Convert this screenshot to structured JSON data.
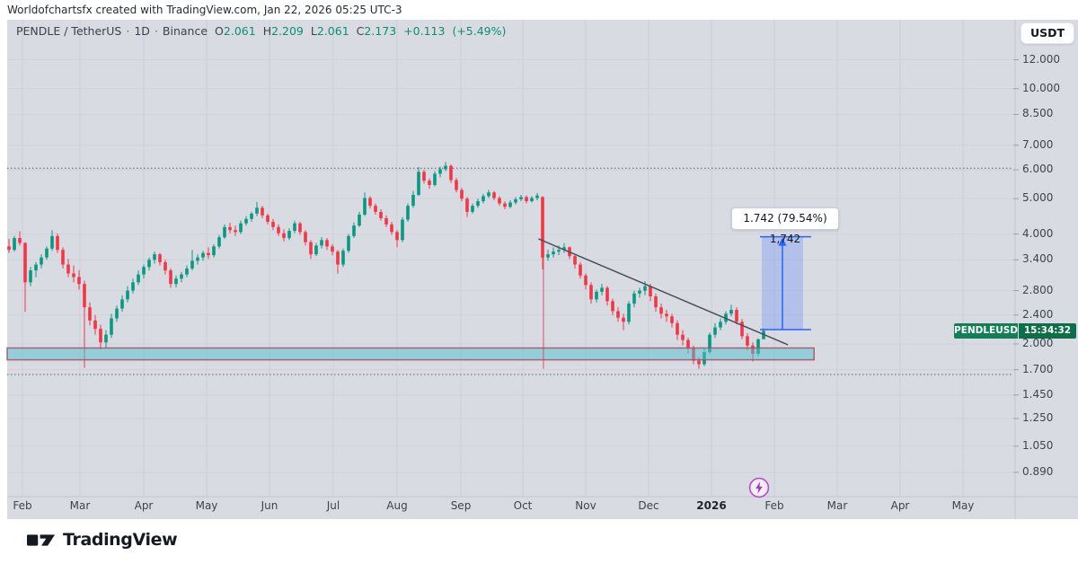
{
  "watermark": "Worldofchartsfx created with TradingView.com, Jan 22, 2026 05:25 UTC-3",
  "header": {
    "symbol_title": "PENDLE / TetherUS",
    "separator": "·",
    "interval": "1D",
    "exchange": "Binance",
    "ohlc": {
      "o_label": "O",
      "o": "2.061",
      "h_label": "H",
      "h": "2.209",
      "l_label": "L",
      "l": "2.061",
      "c_label": "C",
      "c": "2.173",
      "change": "+0.113",
      "change_pct": "(+5.49%)"
    }
  },
  "currency_button": {
    "label": "USDT"
  },
  "symbol_badge": {
    "name": "PENDLEUSDT",
    "countdown": "15:34:32"
  },
  "footer": {
    "brand": "TradingView"
  },
  "colors": {
    "up": "#089981",
    "down": "#f23645",
    "chart_bg": "#d9dbe3",
    "grid": "#c9ccd6",
    "axis_text": "#3f434d",
    "zone_fill": "#4fc3cf",
    "zone_border": "#a84b5e",
    "measure_blue": "#2962ff",
    "trendline": "#4a4e58",
    "vline_red": "#e53945",
    "badge_bg": "#118055",
    "bolt_purple": "#b44fc5",
    "header_value": "#0a8f72",
    "dotted_level": "#5d616c"
  },
  "chart_data": {
    "type": "candlestick",
    "title": "PENDLE / TetherUS · 1D · Binance",
    "scale": "log",
    "ylim": [
      0.76,
      15.4
    ],
    "grid": true,
    "y_axis_ticks": [
      12.0,
      10.0,
      8.5,
      7.0,
      6.0,
      5.0,
      4.0,
      3.4,
      2.8,
      2.4,
      2.0,
      1.7,
      1.45,
      1.25,
      1.05,
      0.89
    ],
    "x_axis_labels": [
      "Feb",
      "Mar",
      "Apr",
      "May",
      "Jun",
      "Jul",
      "Aug",
      "Sep",
      "Oct",
      "Nov",
      "Dec",
      "2026",
      "Feb",
      "Mar",
      "Apr",
      "May"
    ],
    "last_bar": {
      "open": 2.061,
      "high": 2.209,
      "low": 2.061,
      "close": 2.173,
      "change": 0.113,
      "change_pct": 5.49
    },
    "candles_ohlc": [
      [
        3.7,
        3.88,
        3.55,
        3.62
      ],
      [
        3.62,
        3.95,
        3.58,
        3.9
      ],
      [
        3.9,
        4.07,
        3.72,
        3.78
      ],
      [
        3.78,
        3.8,
        2.45,
        2.95
      ],
      [
        2.95,
        3.25,
        2.88,
        3.18
      ],
      [
        3.18,
        3.35,
        3.05,
        3.3
      ],
      [
        3.3,
        3.52,
        3.22,
        3.45
      ],
      [
        3.45,
        3.7,
        3.4,
        3.65
      ],
      [
        3.65,
        4.1,
        3.6,
        3.95
      ],
      [
        3.95,
        4.02,
        3.55,
        3.62
      ],
      [
        3.62,
        3.68,
        3.22,
        3.3
      ],
      [
        3.3,
        3.42,
        3.05,
        3.12
      ],
      [
        3.12,
        3.28,
        2.95,
        3.05
      ],
      [
        3.05,
        3.18,
        2.82,
        2.92
      ],
      [
        2.92,
        2.98,
        1.72,
        2.52
      ],
      [
        2.52,
        2.6,
        2.25,
        2.32
      ],
      [
        2.32,
        2.4,
        2.12,
        2.2
      ],
      [
        2.2,
        2.26,
        1.93,
        2.02
      ],
      [
        2.02,
        2.18,
        1.95,
        2.12
      ],
      [
        2.12,
        2.42,
        2.08,
        2.35
      ],
      [
        2.35,
        2.55,
        2.3,
        2.5
      ],
      [
        2.5,
        2.72,
        2.45,
        2.65
      ],
      [
        2.65,
        2.88,
        2.6,
        2.8
      ],
      [
        2.8,
        3.02,
        2.75,
        2.95
      ],
      [
        2.95,
        3.18,
        2.9,
        3.1
      ],
      [
        3.1,
        3.3,
        3.02,
        3.25
      ],
      [
        3.25,
        3.45,
        3.18,
        3.4
      ],
      [
        3.4,
        3.58,
        3.32,
        3.52
      ],
      [
        3.52,
        3.55,
        3.28,
        3.35
      ],
      [
        3.35,
        3.4,
        3.1,
        3.18
      ],
      [
        3.18,
        3.22,
        2.85,
        2.92
      ],
      [
        2.92,
        3.08,
        2.86,
        3.02
      ],
      [
        3.02,
        3.15,
        2.95,
        3.1
      ],
      [
        3.1,
        3.28,
        3.05,
        3.22
      ],
      [
        3.22,
        3.62,
        3.18,
        3.38
      ],
      [
        3.38,
        3.52,
        3.3,
        3.45
      ],
      [
        3.45,
        3.6,
        3.38,
        3.55
      ],
      [
        3.55,
        3.68,
        3.42,
        3.5
      ],
      [
        3.5,
        3.75,
        3.45,
        3.7
      ],
      [
        3.7,
        3.98,
        3.65,
        3.92
      ],
      [
        3.92,
        4.25,
        3.88,
        4.18
      ],
      [
        4.18,
        4.3,
        4.02,
        4.1
      ],
      [
        4.1,
        4.22,
        3.95,
        4.05
      ],
      [
        4.05,
        4.35,
        4.0,
        4.28
      ],
      [
        4.28,
        4.48,
        4.22,
        4.4
      ],
      [
        4.4,
        4.6,
        4.32,
        4.55
      ],
      [
        4.55,
        4.9,
        4.48,
        4.72
      ],
      [
        4.72,
        4.78,
        4.42,
        4.5
      ],
      [
        4.5,
        4.55,
        4.25,
        4.32
      ],
      [
        4.32,
        4.4,
        4.1,
        4.18
      ],
      [
        4.18,
        4.25,
        3.95,
        4.02
      ],
      [
        4.02,
        4.12,
        3.82,
        3.9
      ],
      [
        3.9,
        4.15,
        3.85,
        4.08
      ],
      [
        4.08,
        4.35,
        4.02,
        4.28
      ],
      [
        4.28,
        4.32,
        3.98,
        4.05
      ],
      [
        4.05,
        4.1,
        3.72,
        3.8
      ],
      [
        3.8,
        3.85,
        3.42,
        3.52
      ],
      [
        3.52,
        3.78,
        3.48,
        3.72
      ],
      [
        3.72,
        3.92,
        3.65,
        3.85
      ],
      [
        3.85,
        3.9,
        3.62,
        3.7
      ],
      [
        3.7,
        3.75,
        3.5,
        3.58
      ],
      [
        3.58,
        3.62,
        3.12,
        3.3
      ],
      [
        3.3,
        3.65,
        3.25,
        3.6
      ],
      [
        3.6,
        4.0,
        3.55,
        3.95
      ],
      [
        3.95,
        4.3,
        3.9,
        4.22
      ],
      [
        4.22,
        4.6,
        4.18,
        4.52
      ],
      [
        4.52,
        5.2,
        4.48,
        5.02
      ],
      [
        5.02,
        5.08,
        4.7,
        4.78
      ],
      [
        4.78,
        4.85,
        4.52,
        4.6
      ],
      [
        4.6,
        4.68,
        4.35,
        4.42
      ],
      [
        4.42,
        4.5,
        4.18,
        4.25
      ],
      [
        4.25,
        4.32,
        3.98,
        4.05
      ],
      [
        4.05,
        4.1,
        3.68,
        3.85
      ],
      [
        3.85,
        4.45,
        3.8,
        4.38
      ],
      [
        4.38,
        4.85,
        4.32,
        4.78
      ],
      [
        4.78,
        5.25,
        4.72,
        5.12
      ],
      [
        5.12,
        6.1,
        5.08,
        5.92
      ],
      [
        5.92,
        6.0,
        5.5,
        5.6
      ],
      [
        5.6,
        5.68,
        5.32,
        5.45
      ],
      [
        5.45,
        5.95,
        5.4,
        5.85
      ],
      [
        5.85,
        6.12,
        5.72,
        6.02
      ],
      [
        6.02,
        6.3,
        5.95,
        6.15
      ],
      [
        6.15,
        6.2,
        5.52,
        5.62
      ],
      [
        5.62,
        5.7,
        5.2,
        5.28
      ],
      [
        5.28,
        5.35,
        4.92,
        5.0
      ],
      [
        5.0,
        5.05,
        4.45,
        4.6
      ],
      [
        4.6,
        4.85,
        4.55,
        4.78
      ],
      [
        4.78,
        5.0,
        4.72,
        4.92
      ],
      [
        4.92,
        5.15,
        4.85,
        5.08
      ],
      [
        5.08,
        5.28,
        5.02,
        5.2
      ],
      [
        5.2,
        5.25,
        4.95,
        5.02
      ],
      [
        5.02,
        5.08,
        4.78,
        4.85
      ],
      [
        4.85,
        4.92,
        4.68,
        4.75
      ],
      [
        4.75,
        4.95,
        4.7,
        4.88
      ],
      [
        4.88,
        5.05,
        4.82,
        4.98
      ],
      [
        4.98,
        5.12,
        4.92,
        5.05
      ],
      [
        5.05,
        5.1,
        4.85,
        4.92
      ],
      [
        4.92,
        5.08,
        4.88,
        5.02
      ],
      [
        5.02,
        5.18,
        4.95,
        5.1
      ],
      [
        5.05,
        5.08,
        3.2,
        3.45
      ],
      [
        3.45,
        3.62,
        3.38,
        3.52
      ],
      [
        3.52,
        3.68,
        3.45,
        3.58
      ],
      [
        3.58,
        3.72,
        3.5,
        3.62
      ],
      [
        3.62,
        3.78,
        3.55,
        3.68
      ],
      [
        3.68,
        3.7,
        3.42,
        3.48
      ],
      [
        3.48,
        3.52,
        3.22,
        3.3
      ],
      [
        3.3,
        3.35,
        3.02,
        3.08
      ],
      [
        3.08,
        3.12,
        2.82,
        2.9
      ],
      [
        2.9,
        2.95,
        2.58,
        2.65
      ],
      [
        2.65,
        2.82,
        2.6,
        2.78
      ],
      [
        2.78,
        2.92,
        2.72,
        2.85
      ],
      [
        2.85,
        2.88,
        2.55,
        2.62
      ],
      [
        2.62,
        2.66,
        2.4,
        2.46
      ],
      [
        2.46,
        2.52,
        2.3,
        2.36
      ],
      [
        2.36,
        2.42,
        2.18,
        2.3
      ],
      [
        2.3,
        2.62,
        2.26,
        2.58
      ],
      [
        2.58,
        2.8,
        2.52,
        2.75
      ],
      [
        2.75,
        2.85,
        2.68,
        2.8
      ],
      [
        2.8,
        2.97,
        2.72,
        2.88
      ],
      [
        2.88,
        2.92,
        2.62,
        2.7
      ],
      [
        2.7,
        2.75,
        2.45,
        2.52
      ],
      [
        2.52,
        2.58,
        2.35,
        2.42
      ],
      [
        2.42,
        2.48,
        2.3,
        2.38
      ],
      [
        2.38,
        2.42,
        2.22,
        2.28
      ],
      [
        2.28,
        2.32,
        2.05,
        2.12
      ],
      [
        2.12,
        2.18,
        1.98,
        2.05
      ],
      [
        2.05,
        2.08,
        1.88,
        1.95
      ],
      [
        1.95,
        1.98,
        1.76,
        1.8
      ],
      [
        1.8,
        1.84,
        1.71,
        1.76
      ],
      [
        1.76,
        1.95,
        1.74,
        1.9
      ],
      [
        1.9,
        2.15,
        1.88,
        2.12
      ],
      [
        2.12,
        2.28,
        2.08,
        2.22
      ],
      [
        2.22,
        2.35,
        2.18,
        2.3
      ],
      [
        2.3,
        2.46,
        2.26,
        2.42
      ],
      [
        2.42,
        2.56,
        2.38,
        2.48
      ],
      [
        2.48,
        2.52,
        2.26,
        2.3
      ],
      [
        2.3,
        2.34,
        2.06,
        2.1
      ],
      [
        2.1,
        2.14,
        1.92,
        1.98
      ],
      [
        1.98,
        2.02,
        1.79,
        1.88
      ],
      [
        1.88,
        2.07,
        1.85,
        2.06
      ],
      [
        2.061,
        2.209,
        2.061,
        2.173
      ]
    ],
    "annotations": {
      "support_zone": {
        "price_top": 1.95,
        "price_bottom": 1.81,
        "x_start_frac": 0.0,
        "x_end_frac": 0.802
      },
      "trendline": {
        "x1_frac": 0.528,
        "price1": 3.88,
        "x2_frac": 0.776,
        "price2": 1.99
      },
      "vertical_line": {
        "x_frac": 0.533,
        "price_top": 4.34,
        "price_bottom": 1.71
      },
      "measure_box": {
        "x1_frac": 0.75,
        "x2_frac": 0.791,
        "price_top": 3.932,
        "price_bottom": 2.19,
        "label": "1.742 (79.54%) 1,742"
      },
      "dotted_levels": [
        6.06,
        1.65
      ]
    }
  }
}
